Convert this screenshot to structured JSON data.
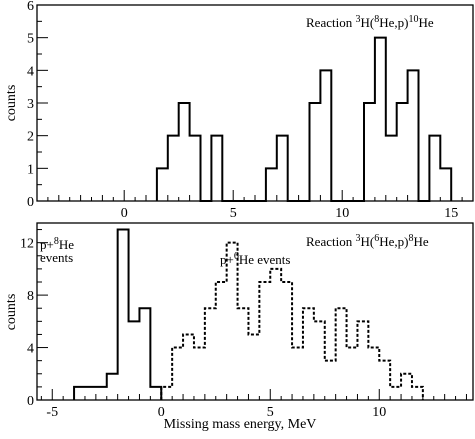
{
  "chart_data": [
    {
      "type": "histogram",
      "annotation": {
        "prefix": "Reaction ",
        "text": "3H(8He,p)10He"
      },
      "xlabel": "",
      "ylabel": "counts",
      "xlim": [
        -4,
        16
      ],
      "ylim": [
        0,
        6
      ],
      "xticks": [
        0,
        5,
        10,
        15
      ],
      "yticks": [
        0,
        1,
        2,
        3,
        4,
        5,
        6
      ],
      "bin_width": 0.5,
      "series": [
        {
          "style": "solid",
          "bins": [
            {
              "x": 1.5,
              "y": 1
            },
            {
              "x": 2.0,
              "y": 2
            },
            {
              "x": 2.5,
              "y": 3
            },
            {
              "x": 3.0,
              "y": 2
            },
            {
              "x": 3.5,
              "y": 0
            },
            {
              "x": 4.0,
              "y": 2
            },
            {
              "x": 4.5,
              "y": 0
            },
            {
              "x": 5.0,
              "y": 0
            },
            {
              "x": 5.5,
              "y": 0
            },
            {
              "x": 6.0,
              "y": 0
            },
            {
              "x": 6.5,
              "y": 1
            },
            {
              "x": 7.0,
              "y": 2
            },
            {
              "x": 7.5,
              "y": 0
            },
            {
              "x": 8.0,
              "y": 0
            },
            {
              "x": 8.5,
              "y": 3
            },
            {
              "x": 9.0,
              "y": 4
            },
            {
              "x": 9.5,
              "y": 0
            },
            {
              "x": 10.0,
              "y": 0
            },
            {
              "x": 10.5,
              "y": 0
            },
            {
              "x": 11.0,
              "y": 3
            },
            {
              "x": 11.5,
              "y": 5
            },
            {
              "x": 12.0,
              "y": 2
            },
            {
              "x": 12.5,
              "y": 3
            },
            {
              "x": 13.0,
              "y": 4
            },
            {
              "x": 13.5,
              "y": 0
            },
            {
              "x": 14.0,
              "y": 2
            },
            {
              "x": 14.5,
              "y": 1
            }
          ]
        }
      ]
    },
    {
      "type": "histogram",
      "annotation": {
        "prefix": "Reaction ",
        "text": "3H(6He,p)8He"
      },
      "xlabel": "Missing mass energy, MeV",
      "ylabel": "counts",
      "xlim": [
        -5.7,
        14.3
      ],
      "ylim": [
        0,
        13.5
      ],
      "xticks": [
        -5,
        0,
        5,
        10
      ],
      "yticks": [
        0,
        4,
        8,
        12
      ],
      "bin_width": 0.5,
      "series": [
        {
          "name": "p+8He events",
          "style": "solid",
          "bins": [
            {
              "x": -4.0,
              "y": 1
            },
            {
              "x": -3.5,
              "y": 1
            },
            {
              "x": -3.0,
              "y": 1
            },
            {
              "x": -2.5,
              "y": 2
            },
            {
              "x": -2.0,
              "y": 13
            },
            {
              "x": -1.5,
              "y": 6
            },
            {
              "x": -1.0,
              "y": 7
            },
            {
              "x": -0.5,
              "y": 1
            }
          ]
        },
        {
          "name": "p+6He events",
          "style": "dashed",
          "bins": [
            {
              "x": 0.0,
              "y": 1
            },
            {
              "x": 0.5,
              "y": 4
            },
            {
              "x": 1.0,
              "y": 5
            },
            {
              "x": 1.5,
              "y": 4
            },
            {
              "x": 2.0,
              "y": 7
            },
            {
              "x": 2.5,
              "y": 9
            },
            {
              "x": 3.0,
              "y": 12
            },
            {
              "x": 3.5,
              "y": 7
            },
            {
              "x": 4.0,
              "y": 5
            },
            {
              "x": 4.5,
              "y": 9
            },
            {
              "x": 5.0,
              "y": 10
            },
            {
              "x": 5.5,
              "y": 9
            },
            {
              "x": 6.0,
              "y": 4
            },
            {
              "x": 6.5,
              "y": 7
            },
            {
              "x": 7.0,
              "y": 6
            },
            {
              "x": 7.5,
              "y": 3
            },
            {
              "x": 8.0,
              "y": 7
            },
            {
              "x": 8.5,
              "y": 4
            },
            {
              "x": 9.0,
              "y": 6
            },
            {
              "x": 9.5,
              "y": 4
            },
            {
              "x": 10.0,
              "y": 3
            },
            {
              "x": 10.5,
              "y": 1
            },
            {
              "x": 11.0,
              "y": 2
            },
            {
              "x": 11.5,
              "y": 1
            }
          ]
        }
      ]
    }
  ]
}
